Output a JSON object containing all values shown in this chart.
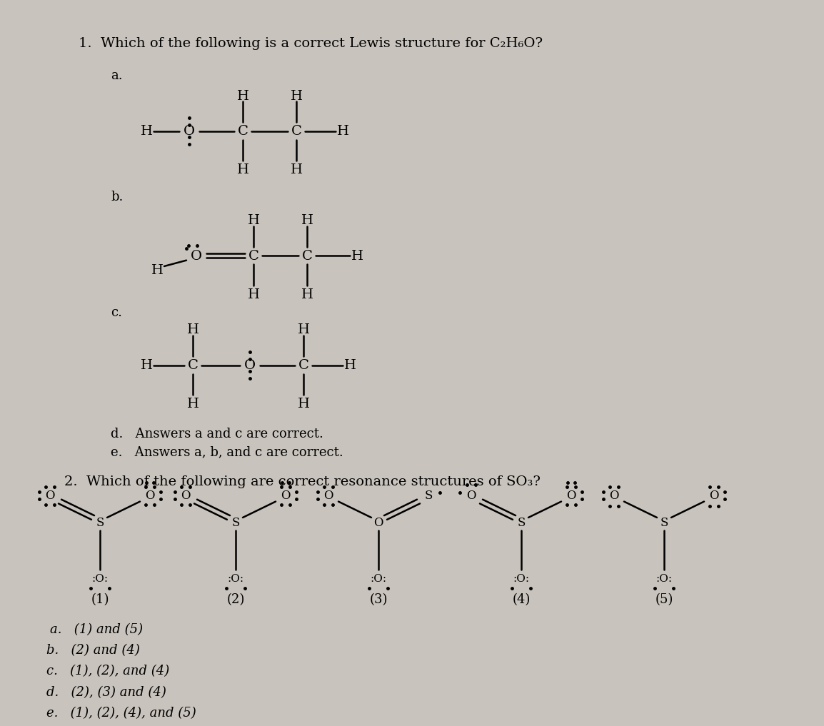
{
  "bg_color": "#c8c3bc",
  "text_color": "#000000",
  "title1": "1.  Which of the following is a correct Lewis structure for C₂H₆O?",
  "title2": "2.  Which of the following are correct resonance structures of SO₃?",
  "q1_d": "d.   Answers a and c are correct.",
  "q1_e": "e.   Answers a, b, and c are correct.",
  "q2_a": "a.   (1) and (5)",
  "q2_b": "b.   (2) and (4)",
  "q2_c": "c.   (1), (2), and (4)",
  "q2_d": "d.   (2), (3) and (4)",
  "q2_e": "e.   (1), (2), (4), and (5)"
}
